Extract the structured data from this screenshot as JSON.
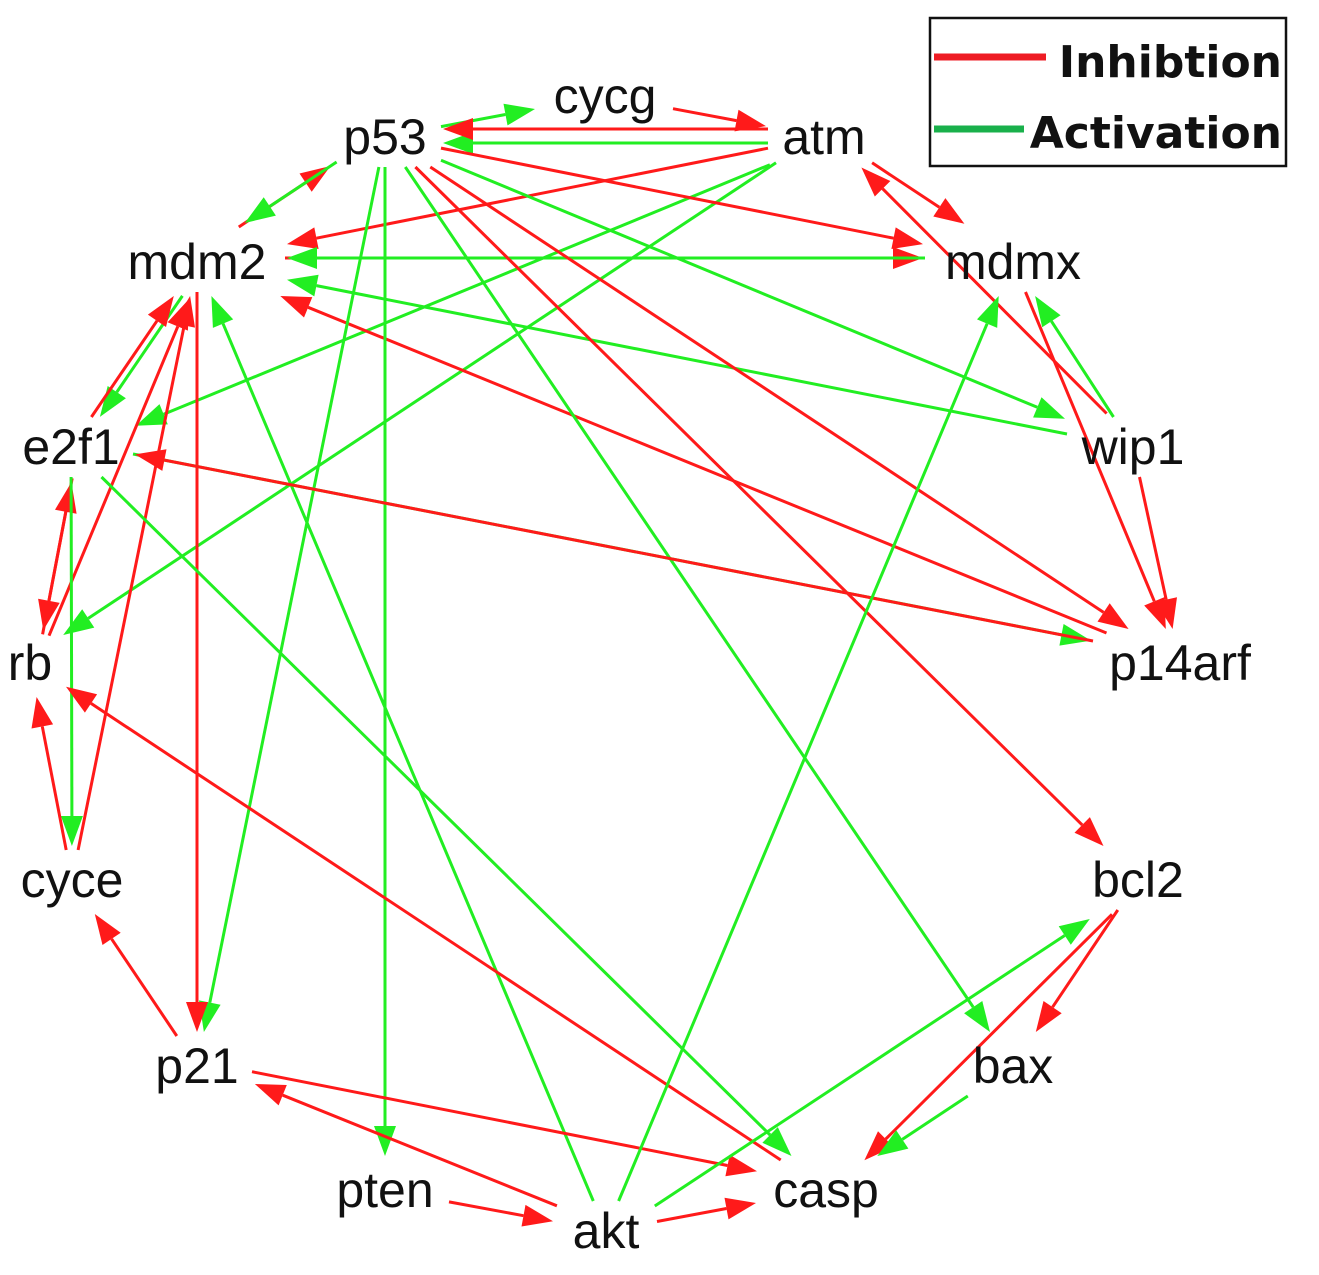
{
  "colors": {
    "inhibition": "#ff1a1a",
    "activation": "#22ee22",
    "legend_inhibition": "#ee1c24",
    "legend_activation": "#19b04b"
  },
  "legend": {
    "inhibition_label": "Inhibtion",
    "activation_label": "Activation"
  },
  "nodes": [
    {
      "id": "cycg",
      "label": "cycg"
    },
    {
      "id": "p53",
      "label": "p53"
    },
    {
      "id": "atm",
      "label": "atm"
    },
    {
      "id": "mdm2",
      "label": "mdm2"
    },
    {
      "id": "mdmx",
      "label": "mdmx"
    },
    {
      "id": "e2f1",
      "label": "e2f1"
    },
    {
      "id": "wip1",
      "label": "wip1"
    },
    {
      "id": "rb",
      "label": "rb"
    },
    {
      "id": "p14arf",
      "label": "p14arf"
    },
    {
      "id": "cyce",
      "label": "cyce"
    },
    {
      "id": "bcl2",
      "label": "bcl2"
    },
    {
      "id": "p21",
      "label": "p21"
    },
    {
      "id": "bax",
      "label": "bax"
    },
    {
      "id": "pten",
      "label": "pten"
    },
    {
      "id": "casp",
      "label": "casp"
    },
    {
      "id": "akt",
      "label": "akt"
    }
  ],
  "edges": [
    {
      "from": "p53",
      "to": "cycg",
      "type": "activation"
    },
    {
      "from": "cycg",
      "to": "atm",
      "type": "inhibition"
    },
    {
      "from": "atm",
      "to": "p53",
      "type": "activation"
    },
    {
      "from": "atm",
      "to": "p53",
      "type": "inhibition"
    },
    {
      "from": "atm",
      "to": "mdm2",
      "type": "inhibition"
    },
    {
      "from": "atm",
      "to": "e2f1",
      "type": "activation"
    },
    {
      "from": "atm",
      "to": "rb",
      "type": "activation"
    },
    {
      "from": "atm",
      "to": "mdmx",
      "type": "inhibition"
    },
    {
      "from": "wip1",
      "to": "atm",
      "type": "inhibition"
    },
    {
      "from": "mdm2",
      "to": "p53",
      "type": "inhibition"
    },
    {
      "from": "p53",
      "to": "mdm2",
      "type": "activation"
    },
    {
      "from": "mdm2",
      "to": "mdmx",
      "type": "inhibition"
    },
    {
      "from": "mdmx",
      "to": "mdm2",
      "type": "activation"
    },
    {
      "from": "p53",
      "to": "mdmx",
      "type": "inhibition"
    },
    {
      "from": "p53",
      "to": "wip1",
      "type": "activation"
    },
    {
      "from": "wip1",
      "to": "mdm2",
      "type": "activation"
    },
    {
      "from": "p14arf",
      "to": "mdm2",
      "type": "inhibition"
    },
    {
      "from": "p53",
      "to": "p14arf",
      "type": "inhibition"
    },
    {
      "from": "p53",
      "to": "bcl2",
      "type": "inhibition"
    },
    {
      "from": "p53",
      "to": "bax",
      "type": "activation"
    },
    {
      "from": "p53",
      "to": "p21",
      "type": "activation"
    },
    {
      "from": "p53",
      "to": "pten",
      "type": "activation"
    },
    {
      "from": "wip1",
      "to": "mdmx",
      "type": "activation"
    },
    {
      "from": "mdmx",
      "to": "p14arf",
      "type": "inhibition"
    },
    {
      "from": "wip1",
      "to": "p14arf",
      "type": "inhibition"
    },
    {
      "from": "mdm2",
      "to": "e2f1",
      "type": "activation"
    },
    {
      "from": "e2f1",
      "to": "mdm2",
      "type": "inhibition"
    },
    {
      "from": "rb",
      "to": "mdm2",
      "type": "inhibition"
    },
    {
      "from": "cyce",
      "to": "mdm2",
      "type": "inhibition"
    },
    {
      "from": "mdm2",
      "to": "p21",
      "type": "inhibition"
    },
    {
      "from": "akt",
      "to": "mdm2",
      "type": "activation"
    },
    {
      "from": "e2f1",
      "to": "rb",
      "type": "inhibition"
    },
    {
      "from": "rb",
      "to": "e2f1",
      "type": "inhibition"
    },
    {
      "from": "e2f1",
      "to": "cyce",
      "type": "activation"
    },
    {
      "from": "e2f1",
      "to": "p14arf",
      "type": "activation"
    },
    {
      "from": "p14arf",
      "to": "e2f1",
      "type": "inhibition"
    },
    {
      "from": "e2f1",
      "to": "casp",
      "type": "activation"
    },
    {
      "from": "cyce",
      "to": "rb",
      "type": "inhibition"
    },
    {
      "from": "p21",
      "to": "cyce",
      "type": "inhibition"
    },
    {
      "from": "casp",
      "to": "rb",
      "type": "inhibition"
    },
    {
      "from": "p21",
      "to": "casp",
      "type": "inhibition"
    },
    {
      "from": "akt",
      "to": "p21",
      "type": "inhibition"
    },
    {
      "from": "pten",
      "to": "akt",
      "type": "inhibition"
    },
    {
      "from": "akt",
      "to": "casp",
      "type": "inhibition"
    },
    {
      "from": "akt",
      "to": "mdmx",
      "type": "activation"
    },
    {
      "from": "akt",
      "to": "bcl2",
      "type": "activation"
    },
    {
      "from": "bcl2",
      "to": "casp",
      "type": "inhibition"
    },
    {
      "from": "bcl2",
      "to": "bax",
      "type": "inhibition"
    },
    {
      "from": "bax",
      "to": "casp",
      "type": "activation"
    }
  ]
}
